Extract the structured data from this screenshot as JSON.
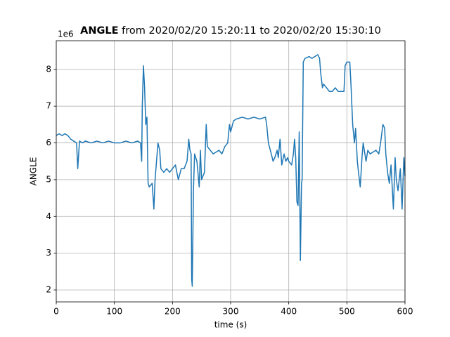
{
  "chart_data": {
    "type": "line",
    "title_bold": "ANGLE",
    "title_rest": "from 2020/02/20 15:20:11 to 2020/02/20 15:30:10",
    "offset_label": "1e6",
    "x_label": "time (s)",
    "y_label": "ANGLE",
    "color": "#1f77b4",
    "grid": true,
    "xlim": [
      0,
      600
    ],
    "ylim": [
      1.675,
      8.78
    ],
    "xticks": [
      0,
      100,
      200,
      300,
      400,
      500,
      600
    ],
    "yticks": [
      2,
      3,
      4,
      5,
      6,
      7,
      8
    ],
    "x": [
      0,
      5,
      10,
      15,
      20,
      25,
      30,
      35,
      37,
      40,
      45,
      50,
      60,
      70,
      80,
      90,
      100,
      110,
      120,
      130,
      140,
      145,
      147,
      148,
      150,
      152,
      154,
      156,
      158,
      160,
      165,
      168,
      170,
      175,
      178,
      180,
      185,
      190,
      195,
      200,
      205,
      210,
      215,
      220,
      225,
      228,
      230,
      232,
      233,
      234,
      236,
      238,
      242,
      246,
      248,
      250,
      255,
      258,
      260,
      265,
      270,
      275,
      280,
      285,
      290,
      295,
      298,
      300,
      305,
      310,
      320,
      330,
      340,
      350,
      360,
      362,
      365,
      370,
      373,
      376,
      380,
      382,
      385,
      388,
      392,
      395,
      398,
      400,
      405,
      408,
      410,
      412,
      414,
      416,
      418,
      420,
      422,
      423,
      425,
      428,
      435,
      440,
      445,
      450,
      453,
      455,
      458,
      460,
      465,
      470,
      475,
      480,
      485,
      490,
      495,
      497,
      500,
      505,
      507,
      510,
      513,
      515,
      518,
      520,
      523,
      526,
      528,
      530,
      533,
      536,
      540,
      545,
      550,
      555,
      558,
      562,
      565,
      567,
      570,
      573,
      576,
      580,
      583,
      585,
      588,
      592,
      595,
      598,
      600
    ],
    "values": [
      6.2,
      6.25,
      6.2,
      6.25,
      6.2,
      6.1,
      6.05,
      6.0,
      5.3,
      6.05,
      6.0,
      6.05,
      6.0,
      6.05,
      6.0,
      6.05,
      6.0,
      6.0,
      6.05,
      6.0,
      6.05,
      6.0,
      5.5,
      7.0,
      8.1,
      7.5,
      6.5,
      6.7,
      4.9,
      4.8,
      4.9,
      4.2,
      5.0,
      6.0,
      5.8,
      5.3,
      5.2,
      5.3,
      5.2,
      5.3,
      5.4,
      5.0,
      5.3,
      5.3,
      5.5,
      6.1,
      5.8,
      5.7,
      2.3,
      2.1,
      4.7,
      5.7,
      5.5,
      4.8,
      5.8,
      5.0,
      5.2,
      6.5,
      5.9,
      5.8,
      5.7,
      5.75,
      5.8,
      5.7,
      5.9,
      6.0,
      6.5,
      6.3,
      6.6,
      6.65,
      6.7,
      6.65,
      6.7,
      6.65,
      6.7,
      6.5,
      6.0,
      5.7,
      5.5,
      5.6,
      5.8,
      5.6,
      6.1,
      5.4,
      5.7,
      5.5,
      5.6,
      5.5,
      5.4,
      5.7,
      6.1,
      5.6,
      4.4,
      4.3,
      6.3,
      2.8,
      4.9,
      5.0,
      8.2,
      8.3,
      8.35,
      8.3,
      8.35,
      8.4,
      8.3,
      7.9,
      7.5,
      7.6,
      7.5,
      7.4,
      7.4,
      7.5,
      7.4,
      7.4,
      7.4,
      8.1,
      8.2,
      8.2,
      7.6,
      6.5,
      6.0,
      6.4,
      5.5,
      5.2,
      4.8,
      5.6,
      6.0,
      5.8,
      5.5,
      5.8,
      5.7,
      5.75,
      5.8,
      5.7,
      6.0,
      6.5,
      6.4,
      5.7,
      5.2,
      4.9,
      5.4,
      4.2,
      5.6,
      5.0,
      4.7,
      5.3,
      4.2,
      5.6,
      5.1
    ]
  }
}
